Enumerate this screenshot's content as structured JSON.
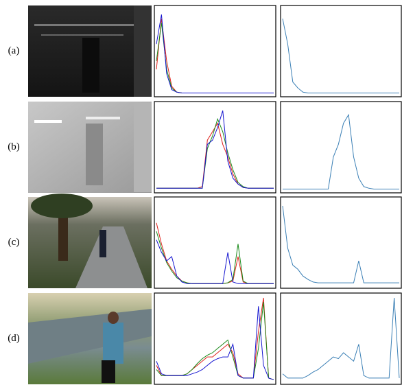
{
  "ylim": [
    0,
    100
  ],
  "colors": {
    "red": "#e0201b",
    "green": "#1a8a1a",
    "blue": "#1515d0",
    "gray": "#3a7fb5"
  },
  "rows": [
    {
      "label": "(a)",
      "rgb": {
        "red": [
          30,
          90,
          40,
          10,
          3,
          2,
          2,
          2,
          2,
          2,
          2,
          2,
          2,
          2,
          2,
          2,
          2,
          2,
          2,
          2,
          2,
          2,
          2,
          2
        ],
        "green": [
          40,
          85,
          30,
          8,
          3,
          2,
          2,
          2,
          2,
          2,
          2,
          2,
          2,
          2,
          2,
          2,
          2,
          2,
          2,
          2,
          2,
          2,
          2,
          2
        ],
        "blue": [
          60,
          95,
          25,
          6,
          3,
          2,
          2,
          2,
          2,
          2,
          2,
          2,
          2,
          2,
          2,
          2,
          2,
          2,
          2,
          2,
          2,
          2,
          2,
          2
        ]
      },
      "gray": [
        90,
        60,
        15,
        8,
        3,
        2,
        2,
        2,
        2,
        2,
        2,
        2,
        2,
        2,
        2,
        2,
        2,
        2,
        2,
        2,
        2,
        2,
        2,
        2
      ]
    },
    {
      "label": "(b)",
      "rgb": {
        "red": [
          3,
          3,
          3,
          3,
          3,
          3,
          3,
          3,
          3,
          5,
          60,
          70,
          80,
          55,
          40,
          20,
          8,
          4,
          3,
          3,
          3,
          3,
          3,
          3
        ],
        "green": [
          3,
          3,
          3,
          3,
          3,
          3,
          3,
          3,
          3,
          3,
          50,
          65,
          85,
          70,
          45,
          25,
          10,
          5,
          3,
          3,
          3,
          3,
          3,
          3
        ],
        "blue": [
          3,
          3,
          3,
          3,
          3,
          3,
          3,
          3,
          3,
          3,
          55,
          60,
          75,
          95,
          35,
          15,
          8,
          4,
          3,
          3,
          3,
          3,
          3,
          3
        ]
      },
      "gray": [
        2,
        2,
        2,
        2,
        2,
        2,
        2,
        2,
        2,
        2,
        40,
        55,
        80,
        90,
        40,
        15,
        5,
        3,
        2,
        2,
        2,
        2,
        2,
        2
      ]
    },
    {
      "label": "(c)",
      "rgb": {
        "red": [
          75,
          50,
          30,
          20,
          12,
          6,
          4,
          3,
          3,
          3,
          3,
          3,
          3,
          3,
          4,
          6,
          35,
          5,
          3,
          3,
          3,
          3,
          3,
          3
        ],
        "green": [
          65,
          45,
          28,
          18,
          10,
          6,
          4,
          3,
          3,
          3,
          3,
          3,
          3,
          3,
          4,
          8,
          50,
          6,
          3,
          3,
          3,
          3,
          3,
          3
        ],
        "blue": [
          55,
          40,
          30,
          35,
          12,
          5,
          3,
          3,
          3,
          3,
          3,
          3,
          3,
          3,
          40,
          5,
          3,
          3,
          3,
          3,
          3,
          3,
          3,
          3
        ]
      },
      "gray": [
        95,
        45,
        25,
        20,
        12,
        8,
        5,
        4,
        4,
        4,
        4,
        4,
        4,
        4,
        4,
        30,
        4,
        4,
        4,
        4,
        4,
        4,
        4,
        4
      ]
    },
    {
      "label": "(d)",
      "rgb": {
        "red": [
          20,
          8,
          8,
          8,
          8,
          8,
          10,
          15,
          20,
          25,
          30,
          30,
          35,
          40,
          45,
          35,
          10,
          5,
          5,
          5,
          60,
          100,
          5,
          3
        ],
        "green": [
          15,
          8,
          8,
          8,
          8,
          8,
          10,
          15,
          22,
          28,
          32,
          35,
          40,
          45,
          50,
          30,
          8,
          5,
          5,
          5,
          40,
          95,
          5,
          3
        ],
        "blue": [
          25,
          10,
          8,
          8,
          8,
          8,
          8,
          10,
          12,
          15,
          20,
          25,
          28,
          30,
          30,
          45,
          8,
          5,
          5,
          5,
          90,
          20,
          5,
          3
        ]
      },
      "gray": [
        10,
        5,
        5,
        5,
        5,
        8,
        12,
        15,
        20,
        25,
        30,
        28,
        35,
        30,
        25,
        45,
        8,
        5,
        5,
        5,
        5,
        5,
        100,
        5
      ]
    }
  ]
}
